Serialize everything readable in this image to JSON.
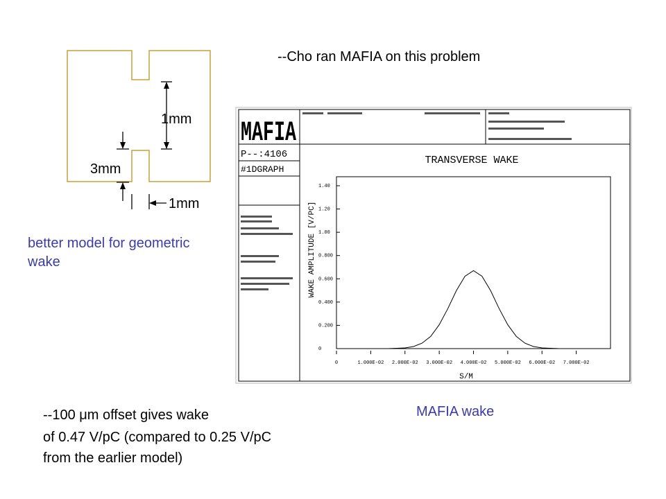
{
  "slide": {
    "heading": "--Cho ran MAFIA on this problem",
    "diagram": {
      "gap_label": "1mm",
      "aperture_label": "3mm",
      "width_label": "1mm",
      "caption": [
        "better model for geometric",
        "wake"
      ]
    },
    "plot_caption": "MAFIA wake",
    "note": [
      "--100 μm offset gives wake",
      "of 0.47 V/pC (compared to 0.25 V/pC",
      "from the earlier model)"
    ]
  },
  "plot": {
    "logo": "MAFIA",
    "run_id": "P--:4106",
    "graph_id": "#1DGRAPH",
    "title": "TRANSVERSE WAKE",
    "y_label": "WAKE AMPLITUDE [V/PC]",
    "x_label": "S/M",
    "xlim": [
      0,
      0.08
    ],
    "ylim": [
      0,
      1.4
    ],
    "xticks": [
      0,
      {
        "value": 0.01,
        "label": "1.000E-02"
      },
      {
        "value": 0.02,
        "label": "2.000E-02"
      },
      {
        "value": 0.03,
        "label": "3.000E-02"
      },
      {
        "value": 0.04,
        "label": "4.000E-02"
      },
      {
        "value": 0.05,
        "label": "5.000E-02"
      },
      {
        "value": 0.06,
        "label": "6.000E-02"
      },
      {
        "value": 0.07,
        "label": "7.000E-02"
      }
    ],
    "yticks": [
      0,
      {
        "value": 0.2,
        "label": "0.200"
      },
      {
        "value": 0.4,
        "label": "0.400"
      },
      {
        "value": 0.6,
        "label": "0.600"
      },
      {
        "value": 0.8,
        "label": "0.800"
      },
      {
        "value": 1,
        "label": "1.00"
      },
      {
        "value": 1.2,
        "label": "1.20"
      },
      {
        "value": 1.4,
        "label": "1.40"
      }
    ],
    "x": [
      0.001,
      0.015,
      0.02,
      0.0225,
      0.025,
      0.0275,
      0.03,
      0.0325,
      0.035,
      0.0375,
      0.04,
      0.0425,
      0.045,
      0.0475,
      0.05,
      0.0525,
      0.055,
      0.0575,
      0.06,
      0.065,
      0.08
    ],
    "values": [
      0,
      0,
      0.006,
      0.018,
      0.047,
      0.105,
      0.205,
      0.344,
      0.498,
      0.622,
      0.67,
      0.622,
      0.498,
      0.344,
      0.205,
      0.105,
      0.047,
      0.018,
      0.006,
      0,
      0
    ],
    "color": "#000000"
  }
}
